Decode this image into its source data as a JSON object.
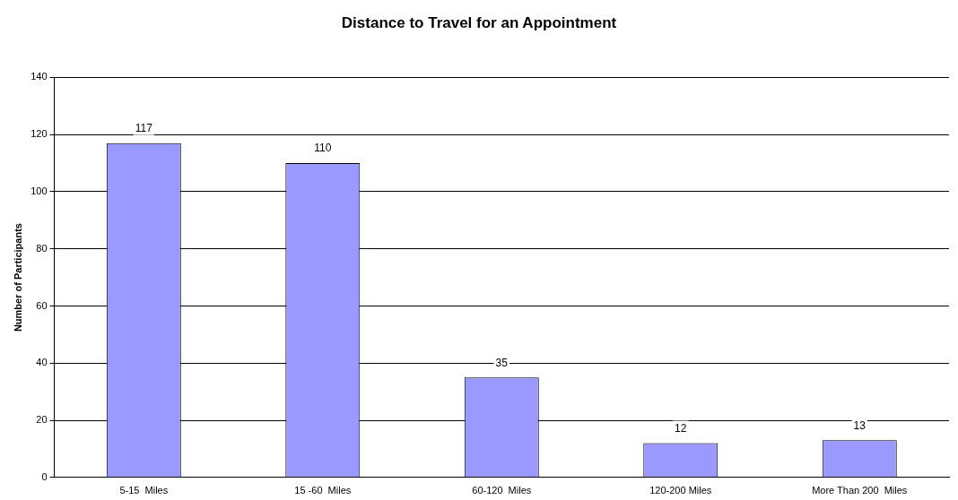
{
  "chart_data": {
    "type": "bar",
    "title": "Distance to Travel for an Appointment",
    "ylabel": "Number of Participants",
    "categories": [
      "5-15  Miles",
      "15 -60  Miles",
      "60-120  Miles",
      "120-200 Miles",
      "More Than 200  Miles"
    ],
    "values": [
      117,
      110,
      35,
      12,
      13
    ],
    "color": "#9999ff",
    "ylim": [
      0,
      140
    ],
    "yticks": [
      0,
      20,
      40,
      60,
      80,
      100,
      120,
      140
    ],
    "grid": "y",
    "data_labels": true,
    "legend": false
  }
}
